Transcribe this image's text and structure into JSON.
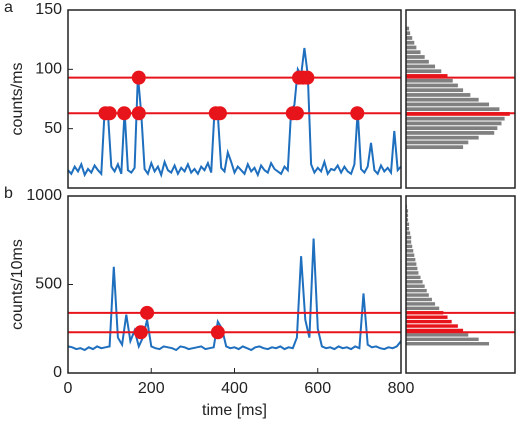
{
  "chart_data": [
    {
      "type": "line",
      "panel_label": "a",
      "y_label": "counts/ms",
      "color": "#1f6fbf",
      "x": [
        0,
        8,
        16,
        24,
        32,
        40,
        48,
        56,
        64,
        72,
        80,
        88,
        96,
        104,
        112,
        120,
        128,
        136,
        144,
        152,
        160,
        168,
        176,
        184,
        192,
        200,
        208,
        216,
        224,
        232,
        240,
        248,
        256,
        264,
        272,
        280,
        288,
        296,
        304,
        312,
        320,
        328,
        336,
        344,
        352,
        360,
        368,
        376,
        384,
        392,
        400,
        408,
        416,
        424,
        432,
        440,
        448,
        456,
        464,
        472,
        480,
        488,
        496,
        504,
        512,
        520,
        528,
        536,
        544,
        552,
        560,
        568,
        576,
        584,
        592,
        600,
        608,
        616,
        624,
        632,
        640,
        648,
        656,
        664,
        672,
        680,
        688,
        696,
        704,
        712,
        720,
        728,
        736,
        744,
        752,
        760,
        768,
        776,
        784,
        792,
        800
      ],
      "values": [
        15,
        12,
        18,
        14,
        20,
        11,
        16,
        13,
        19,
        15,
        12,
        65,
        62,
        18,
        14,
        20,
        12,
        65,
        15,
        13,
        17,
        95,
        62,
        16,
        12,
        21,
        14,
        18,
        11,
        22,
        15,
        13,
        19,
        12,
        17,
        14,
        20,
        13,
        16,
        12,
        18,
        15,
        21,
        13,
        65,
        62,
        17,
        14,
        30,
        22,
        13,
        18,
        15,
        12,
        20,
        14,
        17,
        11,
        19,
        15,
        13,
        21,
        16,
        14,
        12,
        18,
        15,
        65,
        70,
        100,
        95,
        118,
        95,
        20,
        13,
        17,
        14,
        22,
        12,
        16,
        15,
        19,
        13,
        18,
        14,
        12,
        20,
        65,
        16,
        13,
        18,
        38,
        15,
        12,
        19,
        14,
        17,
        13,
        48,
        15,
        18
      ],
      "xlim": [
        0,
        800
      ],
      "ylim": [
        0,
        150
      ],
      "yticks": [
        50,
        100,
        150
      ],
      "hlines": [
        {
          "value": 93,
          "color": "#e8141b"
        },
        {
          "value": 63,
          "color": "#e8141b"
        }
      ],
      "markers": {
        "color": "#e8141b",
        "x": [
          90,
          100,
          135,
          170,
          355,
          365,
          540,
          550,
          695,
          170,
          555,
          565,
          575
        ],
        "y": [
          63,
          63,
          63,
          63,
          63,
          63,
          63,
          63,
          63,
          93,
          93,
          93,
          93
        ]
      }
    },
    {
      "type": "histogram",
      "ylim": [
        0,
        150
      ],
      "xlim": [
        0,
        105
      ],
      "bins": [
        32,
        36,
        40,
        44,
        48,
        52,
        56,
        60,
        64,
        68,
        72,
        76,
        80,
        84,
        88,
        92,
        96,
        100,
        104,
        108,
        112,
        116,
        120,
        124,
        128,
        132,
        136
      ],
      "values": [
        55,
        60,
        70,
        85,
        88,
        92,
        95,
        100,
        90,
        80,
        70,
        62,
        55,
        50,
        45,
        40,
        34,
        28,
        22,
        18,
        14,
        10,
        8,
        6,
        4,
        3
      ],
      "colors": [
        "#808080",
        "#808080",
        "#808080",
        "#808080",
        "#808080",
        "#808080",
        "#808080",
        "#e8141b",
        "#808080",
        "#808080",
        "#808080",
        "#808080",
        "#808080",
        "#808080",
        "#808080",
        "#e8141b",
        "#808080",
        "#808080",
        "#808080",
        "#808080",
        "#808080",
        "#808080",
        "#808080",
        "#808080",
        "#808080",
        "#808080"
      ],
      "hlines": [
        {
          "value": 93,
          "color": "#e8141b"
        },
        {
          "value": 63,
          "color": "#e8141b"
        }
      ]
    },
    {
      "type": "line",
      "panel_label": "b",
      "y_label": "counts/10ms",
      "x_label": "time [ms]",
      "color": "#1f6fbf",
      "x": [
        0,
        10,
        20,
        30,
        40,
        50,
        60,
        70,
        80,
        90,
        100,
        110,
        120,
        130,
        140,
        150,
        160,
        170,
        180,
        190,
        200,
        210,
        220,
        230,
        240,
        250,
        260,
        270,
        280,
        290,
        300,
        310,
        320,
        330,
        340,
        350,
        360,
        370,
        380,
        390,
        400,
        410,
        420,
        430,
        440,
        450,
        460,
        470,
        480,
        490,
        500,
        510,
        520,
        530,
        540,
        550,
        560,
        570,
        580,
        590,
        600,
        610,
        620,
        630,
        640,
        650,
        660,
        670,
        680,
        690,
        700,
        710,
        720,
        730,
        740,
        750,
        760,
        770,
        780,
        790,
        800
      ],
      "values": [
        150,
        145,
        135,
        140,
        130,
        145,
        135,
        150,
        140,
        145,
        150,
        600,
        200,
        160,
        330,
        180,
        240,
        150,
        200,
        300,
        150,
        140,
        135,
        150,
        145,
        140,
        130,
        150,
        145,
        135,
        140,
        145,
        150,
        135,
        140,
        145,
        290,
        250,
        150,
        140,
        145,
        135,
        150,
        140,
        130,
        145,
        150,
        140,
        135,
        145,
        140,
        150,
        135,
        145,
        140,
        200,
        660,
        300,
        200,
        760,
        250,
        150,
        140,
        145,
        135,
        150,
        140,
        145,
        135,
        150,
        140,
        450,
        160,
        145,
        150,
        140,
        135,
        145,
        140,
        150,
        180
      ],
      "xlim": [
        0,
        800
      ],
      "ylim": [
        0,
        1000
      ],
      "xticks": [
        0,
        200,
        400,
        600,
        800
      ],
      "yticks": [
        0,
        500,
        1000
      ],
      "hlines": [
        {
          "value": 340,
          "color": "#e8141b"
        },
        {
          "value": 230,
          "color": "#e8141b"
        }
      ],
      "markers": {
        "color": "#e8141b",
        "x": [
          190,
          175,
          360
        ],
        "y": [
          340,
          230,
          230
        ]
      }
    },
    {
      "type": "histogram",
      "ylim": [
        0,
        1000
      ],
      "xlim": [
        0,
        105
      ],
      "bins": [
        150,
        175,
        200,
        225,
        250,
        275,
        300,
        325,
        350,
        375,
        400,
        425,
        450,
        475,
        500,
        525,
        550,
        575,
        600,
        625,
        650,
        675,
        700,
        725,
        750,
        775,
        800,
        825,
        850,
        875,
        900,
        925,
        950
      ],
      "values": [
        80,
        70,
        60,
        55,
        50,
        44,
        40,
        36,
        32,
        28,
        25,
        22,
        20,
        18,
        16,
        14,
        12,
        11,
        10,
        9,
        8,
        7,
        6,
        5,
        5,
        4,
        3,
        3,
        2,
        2,
        2,
        1
      ],
      "colors": [
        "#808080",
        "#808080",
        "#808080",
        "#e8141b",
        "#e8141b",
        "#e8141b",
        "#e8141b",
        "#e8141b",
        "#808080",
        "#808080",
        "#808080",
        "#808080",
        "#808080",
        "#808080",
        "#808080",
        "#808080",
        "#808080",
        "#808080",
        "#808080",
        "#808080",
        "#808080",
        "#808080",
        "#808080",
        "#808080",
        "#808080",
        "#808080",
        "#808080",
        "#808080",
        "#808080",
        "#808080",
        "#808080",
        "#808080"
      ],
      "hlines": [
        {
          "value": 340,
          "color": "#e8141b"
        },
        {
          "value": 230,
          "color": "#e8141b"
        }
      ]
    }
  ]
}
